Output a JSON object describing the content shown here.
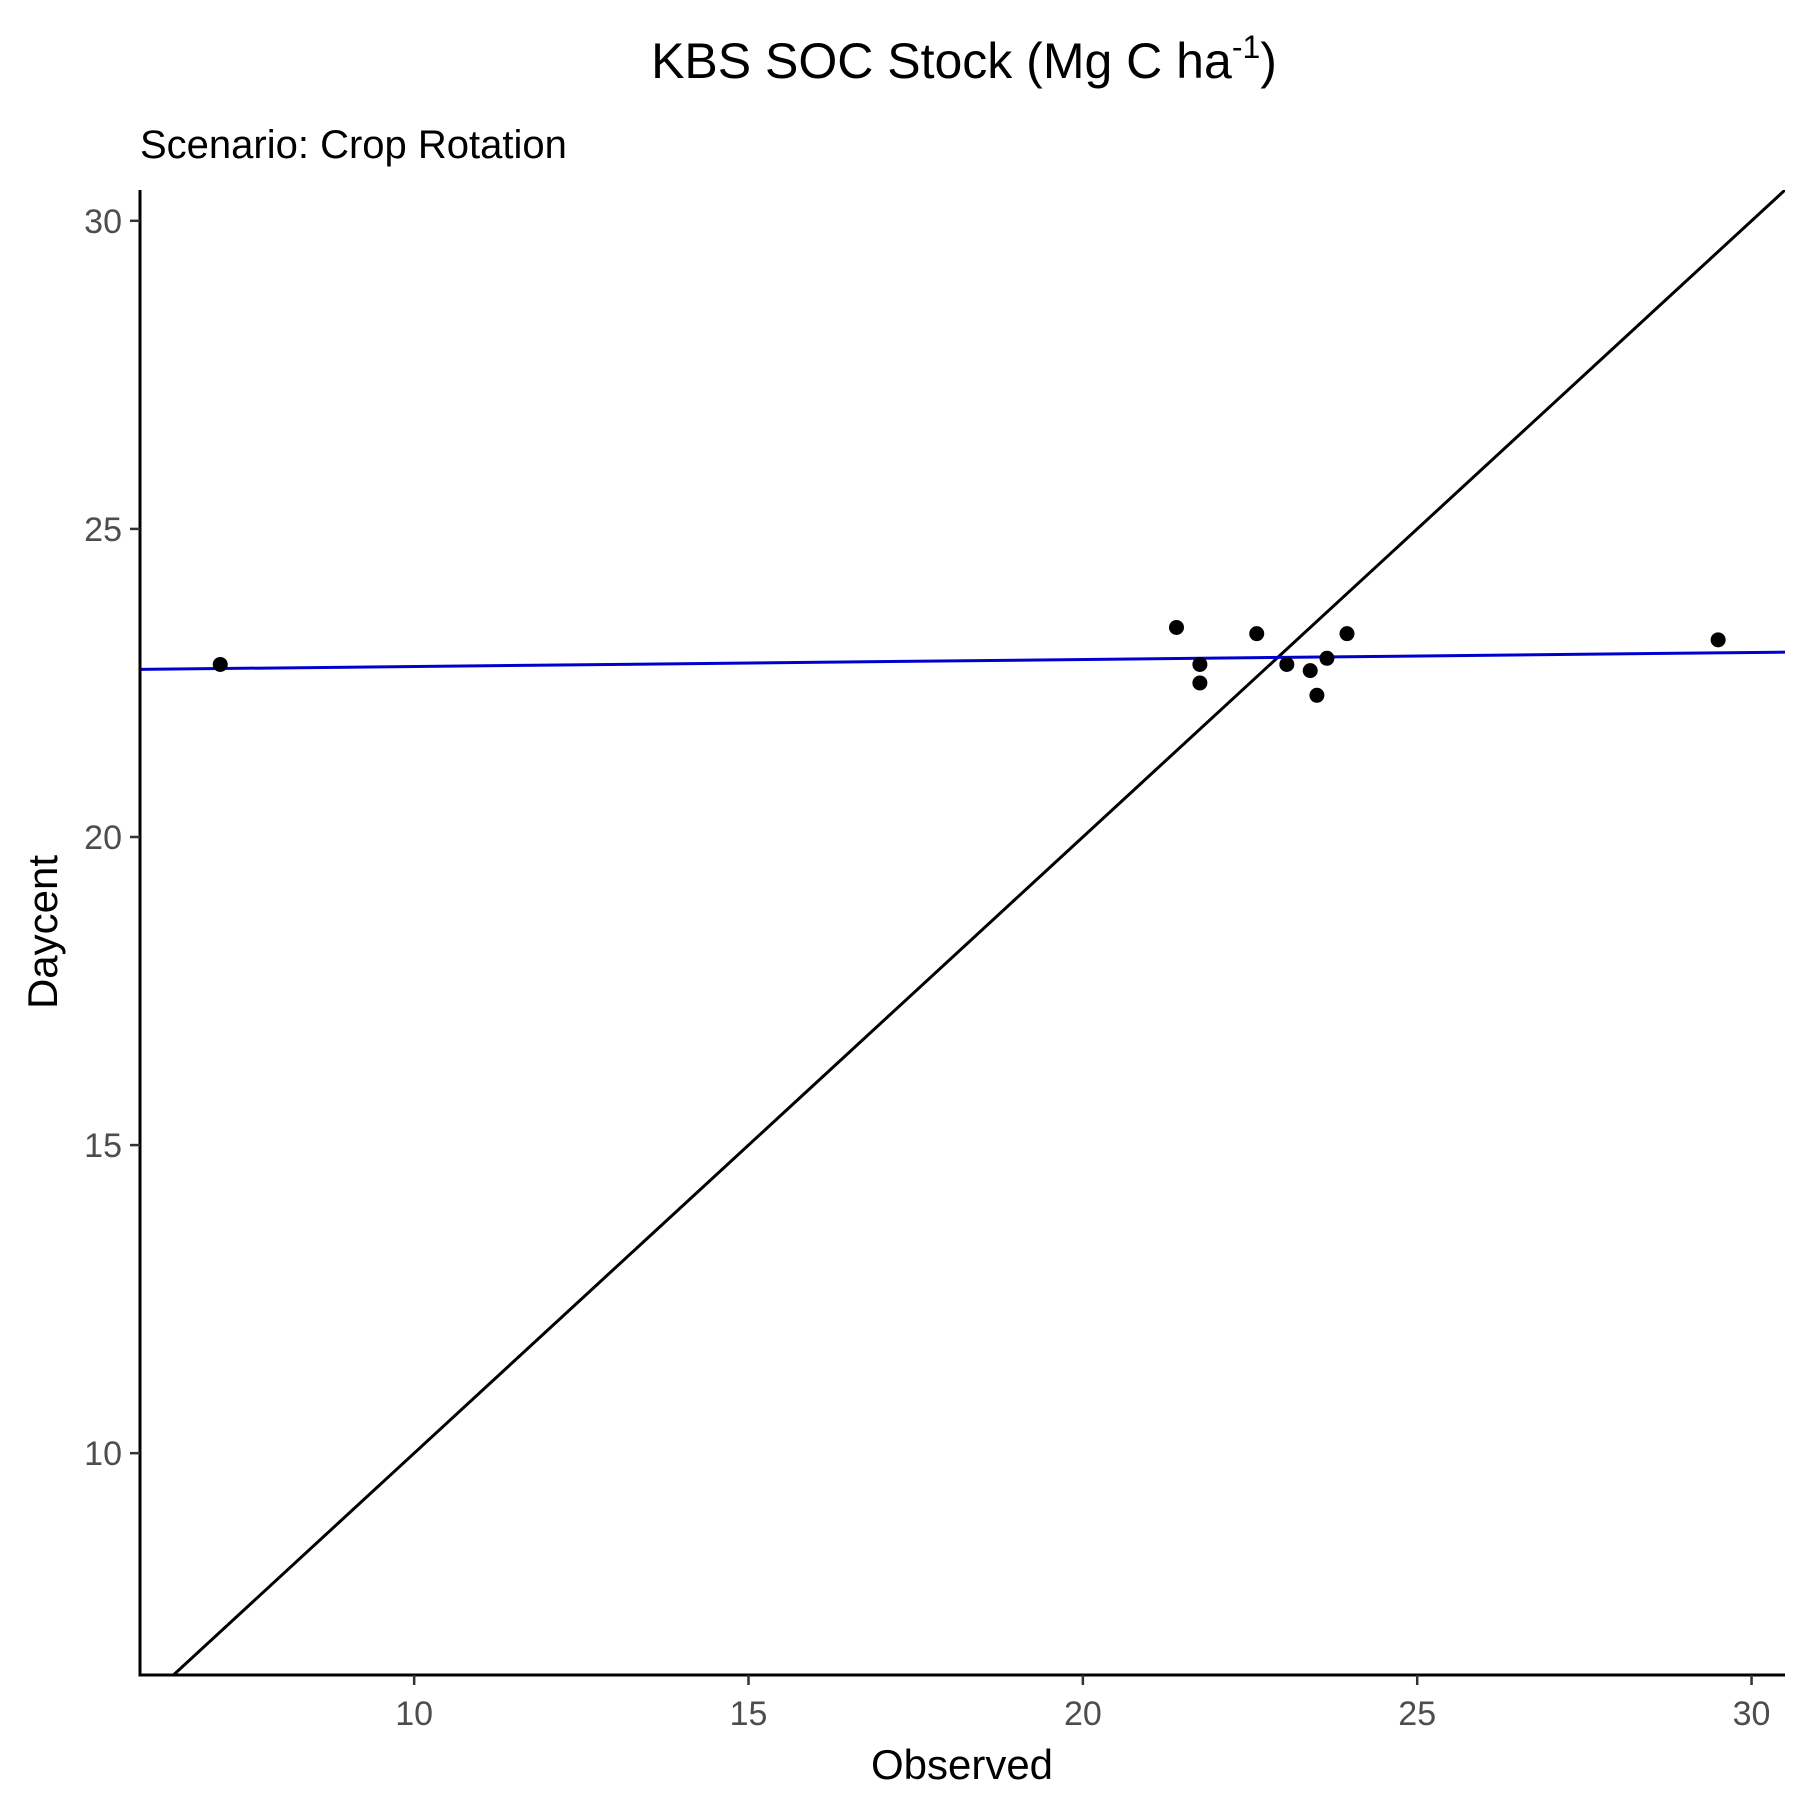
{
  "chart_data": {
    "type": "scatter",
    "title": "KBS SOC Stock (Mg C ha",
    "title_superscript": "-1",
    "title_suffix": ")",
    "subtitle": "Scenario: Crop Rotation",
    "xlabel": "Observed",
    "ylabel": "Daycent",
    "xlim": [
      5.9,
      30.5
    ],
    "ylim": [
      6.4,
      30.5
    ],
    "x_ticks": [
      10,
      15,
      20,
      25,
      30
    ],
    "y_ticks": [
      10,
      15,
      20,
      25,
      30
    ],
    "grid": false,
    "legend": "none",
    "points": [
      {
        "x": 7.1,
        "y": 22.8
      },
      {
        "x": 21.4,
        "y": 23.4
      },
      {
        "x": 21.75,
        "y": 22.8
      },
      {
        "x": 21.75,
        "y": 22.5
      },
      {
        "x": 22.6,
        "y": 23.3
      },
      {
        "x": 23.05,
        "y": 22.8
      },
      {
        "x": 23.4,
        "y": 22.7
      },
      {
        "x": 23.5,
        "y": 22.3
      },
      {
        "x": 23.65,
        "y": 22.9
      },
      {
        "x": 23.95,
        "y": 23.3
      },
      {
        "x": 29.5,
        "y": 23.2
      }
    ],
    "reference_line": {
      "type": "identity",
      "color": "#000000"
    },
    "fit_line": {
      "type": "linear",
      "color": "#0000cd",
      "x": [
        5.9,
        30.5
      ],
      "y": [
        22.72,
        23.0
      ]
    },
    "colors": {
      "points": "#000000",
      "axis": "#000000",
      "tick_text": "#4d4d4d"
    }
  }
}
